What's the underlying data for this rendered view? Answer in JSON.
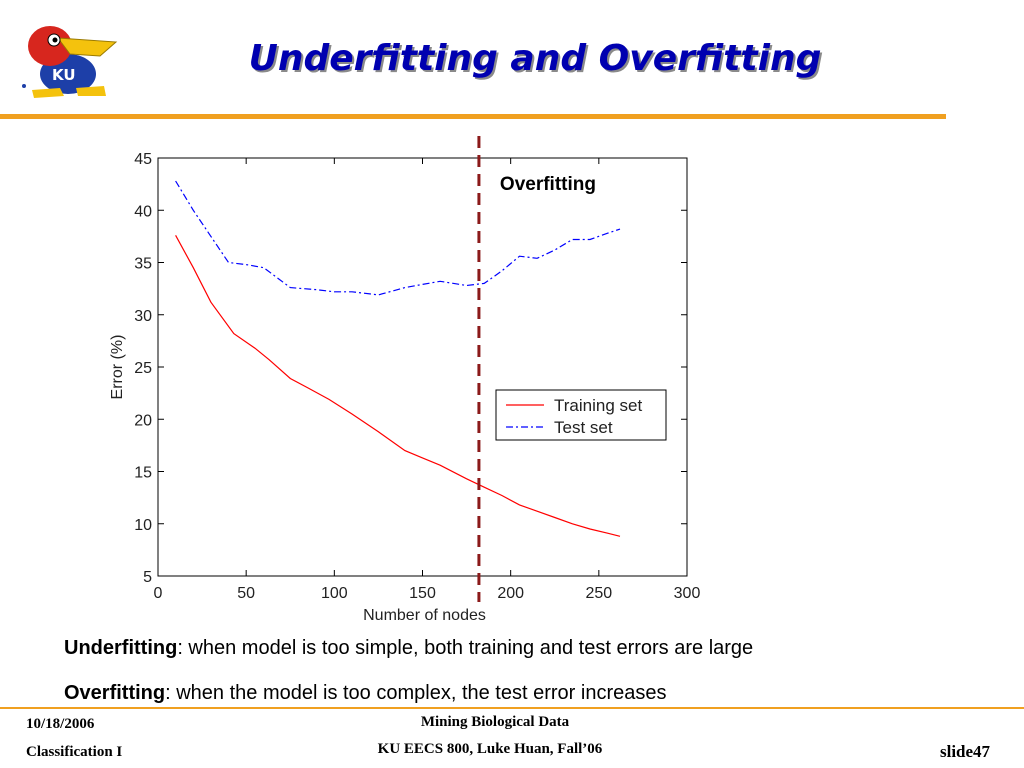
{
  "slide": {
    "title": "Underfitting and Overfitting",
    "logo_text": "KU",
    "notes": [
      {
        "term": "Underfitting",
        "text": ": when model is too simple, both training and test errors are large"
      },
      {
        "term": "Overfitting",
        "text": ": when the model is too complex, the test error increases"
      }
    ],
    "footer": {
      "date": "10/18/2006",
      "topic": "Classification I",
      "course_line1": "Mining Biological Data",
      "course_line2": "KU EECS 800, Luke Huan, Fall’06",
      "slide_label": "slide47"
    }
  },
  "colors": {
    "title": "#0000b0",
    "rule": "#f0a020",
    "training": "#ff0000",
    "test": "#0000ff",
    "marker": "#8b1a1a"
  },
  "chart_data": {
    "type": "line",
    "xlabel": "Number of nodes",
    "ylabel": "Error (%)",
    "xlim": [
      0,
      300
    ],
    "ylim": [
      5,
      45
    ],
    "xticks": [
      0,
      50,
      100,
      150,
      200,
      250,
      300
    ],
    "yticks": [
      5,
      10,
      15,
      20,
      25,
      30,
      35,
      40,
      45
    ],
    "grid": false,
    "legend_position": "lower-right",
    "series": [
      {
        "name": "Training set",
        "style": "solid",
        "x": [
          10,
          20,
          30,
          43,
          55,
          63,
          75,
          85,
          97,
          110,
          125,
          140,
          150,
          160,
          175,
          185,
          195,
          205,
          215,
          225,
          235,
          245,
          255,
          262
        ],
        "y": [
          37.6,
          34.5,
          31.2,
          28.2,
          26.8,
          25.7,
          23.9,
          23.0,
          21.9,
          20.5,
          18.8,
          17.0,
          16.3,
          15.6,
          14.3,
          13.5,
          12.7,
          11.8,
          11.2,
          10.6,
          10.0,
          9.5,
          9.1,
          8.8
        ]
      },
      {
        "name": "Test set",
        "style": "dashdot",
        "x": [
          10,
          20,
          30,
          40,
          50,
          60,
          75,
          90,
          100,
          110,
          125,
          140,
          150,
          160,
          175,
          185,
          195,
          205,
          215,
          225,
          235,
          245,
          255,
          262
        ],
        "y": [
          42.8,
          40.0,
          37.5,
          35.0,
          34.8,
          34.5,
          32.6,
          32.4,
          32.2,
          32.2,
          31.9,
          32.6,
          32.9,
          33.2,
          32.8,
          33.0,
          34.2,
          35.6,
          35.4,
          36.2,
          37.2,
          37.2,
          37.8,
          38.2
        ]
      }
    ],
    "annotations": [
      {
        "type": "vline",
        "x": 182,
        "label": "Overfitting"
      }
    ]
  }
}
